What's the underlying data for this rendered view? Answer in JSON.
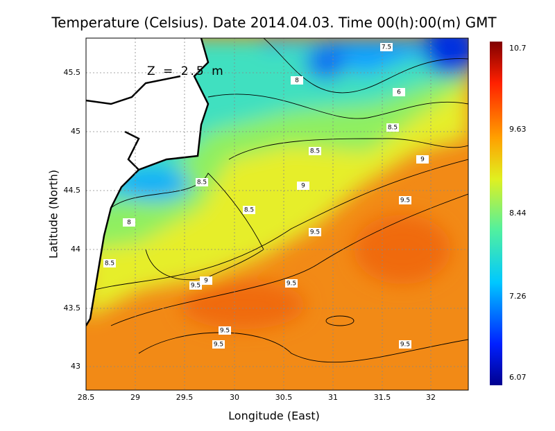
{
  "title": "Temperature (Celsius). Date 2014.04.03. Time 00(h):00(m) GMT",
  "annotation": "Z = 2.5 m",
  "x_axis": {
    "label": "Longitude (East)",
    "ticks": [
      "28.5",
      "29",
      "29.5",
      "30",
      "30.5",
      "31",
      "31.5",
      "32"
    ]
  },
  "y_axis": {
    "label": "Latitude (North)",
    "ticks": [
      "43",
      "43.5",
      "44",
      "44.5",
      "45",
      "45.5"
    ]
  },
  "colorbar": {
    "labels": [
      "10.7",
      "9.63",
      "8.44",
      "7.26",
      "6.07"
    ]
  },
  "contour_labels": [
    "7.5",
    "8",
    "6",
    "8.5",
    "8.5",
    "9",
    "9",
    "8.5",
    "9.5",
    "8.5",
    "9.5",
    "8",
    "8.5",
    "9",
    "9.5",
    "9.5",
    "9.5",
    "9.5",
    "9.5"
  ]
}
